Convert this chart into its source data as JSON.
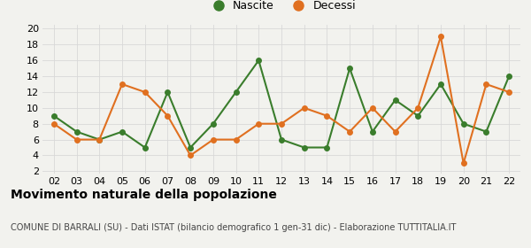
{
  "years": [
    "02",
    "03",
    "04",
    "05",
    "06",
    "07",
    "08",
    "09",
    "10",
    "11",
    "12",
    "13",
    "14",
    "15",
    "16",
    "17",
    "18",
    "19",
    "20",
    "21",
    "22"
  ],
  "nascite": [
    9,
    7,
    6,
    7,
    5,
    12,
    5,
    8,
    12,
    16,
    6,
    5,
    5,
    15,
    7,
    11,
    9,
    13,
    8,
    7,
    14
  ],
  "decessi": [
    8,
    6,
    6,
    13,
    12,
    9,
    4,
    6,
    6,
    8,
    8,
    10,
    9,
    7,
    10,
    7,
    10,
    19,
    3,
    13,
    12
  ],
  "nascite_color": "#3a7d2c",
  "decessi_color": "#e07020",
  "background_color": "#f2f2ee",
  "grid_color": "#d8d8d8",
  "ylim_min": 2,
  "ylim_max": 20,
  "yticks": [
    2,
    4,
    6,
    8,
    10,
    12,
    14,
    16,
    18,
    20
  ],
  "title": "Movimento naturale della popolazione",
  "subtitle": "COMUNE DI BARRALI (SU) - Dati ISTAT (bilancio demografico 1 gen-31 dic) - Elaborazione TUTTITALIA.IT",
  "legend_nascite": "Nascite",
  "legend_decessi": "Decessi",
  "marker_size": 4,
  "line_width": 1.5,
  "title_fontsize": 10,
  "subtitle_fontsize": 7,
  "tick_fontsize": 8
}
